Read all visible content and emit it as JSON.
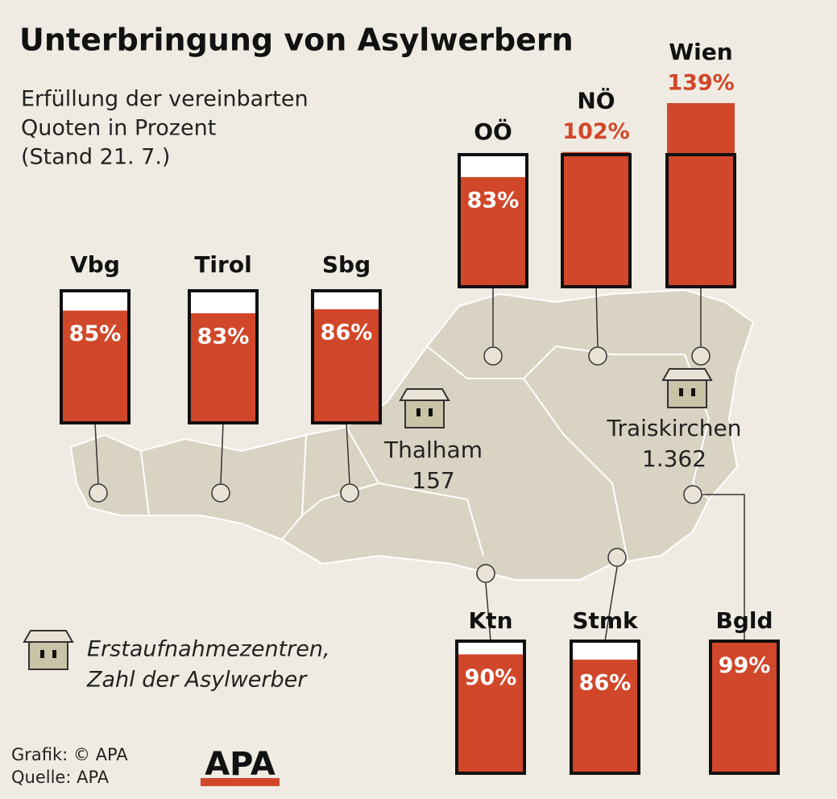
{
  "chart_data": {
    "type": "bar",
    "title": "Unterbringung von Asylwerbern",
    "subtitle": [
      "Erfüllung der vereinbarten",
      "Quoten in Prozent",
      "(Stand 21. 7.)"
    ],
    "categories": [
      "Vbg",
      "Tirol",
      "Sbg",
      "OÖ",
      "NÖ",
      "Wien",
      "Ktn",
      "Stmk",
      "Bgld"
    ],
    "values": [
      85,
      83,
      86,
      83,
      102,
      139,
      90,
      86,
      99
    ],
    "value_labels": [
      "85%",
      "83%",
      "86%",
      "83%",
      "102%",
      "139%",
      "90%",
      "86%",
      "99%"
    ],
    "color": "#d1472a",
    "ylim": [
      0,
      100
    ],
    "annotations": [
      {
        "name": "Thalham",
        "value": "157"
      },
      {
        "name": "Traiskirchen",
        "value": "1.362"
      }
    ],
    "legend": [
      "Erstaufnahmezentren,",
      "Zahl der Asylwerber"
    ],
    "credits": [
      "Grafik: © APA",
      "Quelle: APA"
    ],
    "logo": "APA"
  }
}
